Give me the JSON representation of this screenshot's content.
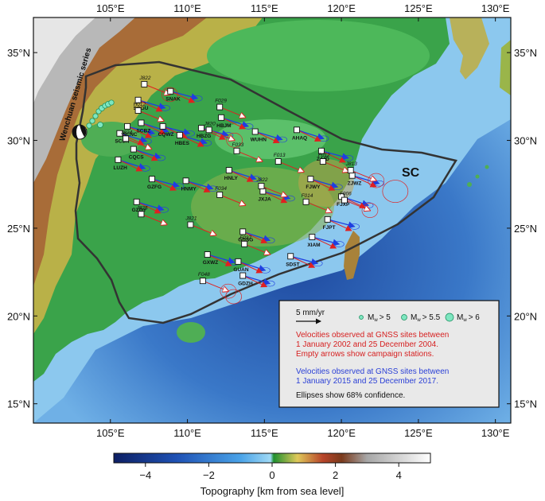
{
  "map": {
    "lon_ticks": [
      "105°E",
      "110°E",
      "115°E",
      "120°E",
      "125°E",
      "130°E"
    ],
    "lat_ticks": [
      "35°N",
      "30°N",
      "25°N",
      "20°N",
      "15°N"
    ],
    "region_label": "SC",
    "seismic_label": "Wenchuan seismic series"
  },
  "sites_permanent": [
    {
      "name": "SNAK",
      "lon": 108.9,
      "lat": 32.8
    },
    {
      "name": "SCGU",
      "lon": 106.8,
      "lat": 32.3
    },
    {
      "name": "SCBZ",
      "lon": 107.0,
      "lat": 31.0
    },
    {
      "name": "SCNC",
      "lon": 106.1,
      "lat": 30.8
    },
    {
      "name": "SCSN",
      "lon": 105.6,
      "lat": 30.4
    },
    {
      "name": "CQCS",
      "lon": 106.5,
      "lat": 29.5
    },
    {
      "name": "CQWZ",
      "lon": 108.4,
      "lat": 30.8
    },
    {
      "name": "HBES",
      "lon": 109.5,
      "lat": 30.3
    },
    {
      "name": "HBJM",
      "lon": 112.2,
      "lat": 31.3
    },
    {
      "name": "HBZG",
      "lon": 110.9,
      "lat": 30.7
    },
    {
      "name": "WUHN",
      "lon": 114.4,
      "lat": 30.5
    },
    {
      "name": "AHAQ",
      "lon": 117.1,
      "lat": 30.6
    },
    {
      "name": "ZJJD",
      "lon": 118.7,
      "lat": 29.4
    },
    {
      "name": "ZJWZ",
      "lon": 120.7,
      "lat": 28.0
    },
    {
      "name": "LUZH",
      "lon": 105.5,
      "lat": 28.9
    },
    {
      "name": "GZFG",
      "lon": 107.7,
      "lat": 27.8
    },
    {
      "name": "HNMY",
      "lon": 109.9,
      "lat": 27.7
    },
    {
      "name": "HNLY",
      "lon": 112.7,
      "lat": 28.3
    },
    {
      "name": "JXJA",
      "lon": 114.9,
      "lat": 27.1
    },
    {
      "name": "FJWY",
      "lon": 118.0,
      "lat": 27.8
    },
    {
      "name": "FJXP",
      "lon": 120.0,
      "lat": 26.8
    },
    {
      "name": "FJPT",
      "lon": 119.1,
      "lat": 25.5
    },
    {
      "name": "GZGY",
      "lon": 106.7,
      "lat": 26.5
    },
    {
      "name": "GDSG",
      "lon": 113.6,
      "lat": 24.8
    },
    {
      "name": "XIAM",
      "lon": 118.1,
      "lat": 24.5
    },
    {
      "name": "GXWZ",
      "lon": 111.3,
      "lat": 23.5
    },
    {
      "name": "GUAN",
      "lon": 113.3,
      "lat": 23.1
    },
    {
      "name": "SDST",
      "lon": 116.7,
      "lat": 23.4
    },
    {
      "name": "GDZH",
      "lon": 113.6,
      "lat": 22.3
    }
  ],
  "sites_campaign": [
    {
      "name": "J822",
      "lon": 107.2,
      "lat": 33.2
    },
    {
      "name": "H012",
      "lon": 106.8,
      "lat": 31.7
    },
    {
      "name": "J824",
      "lon": 106.0,
      "lat": 30.1
    },
    {
      "name": "F029",
      "lon": 112.1,
      "lat": 31.9
    },
    {
      "name": "J820",
      "lon": 111.4,
      "lat": 30.6
    },
    {
      "name": "F033",
      "lon": 113.2,
      "lat": 29.4
    },
    {
      "name": "F013",
      "lon": 115.9,
      "lat": 28.8
    },
    {
      "name": "F012",
      "lon": 118.8,
      "lat": 28.8
    },
    {
      "name": "J813",
      "lon": 120.6,
      "lat": 28.3
    },
    {
      "name": "J822",
      "lon": 114.8,
      "lat": 27.4
    },
    {
      "name": "F034",
      "lon": 112.1,
      "lat": 26.9
    },
    {
      "name": "F014",
      "lon": 117.7,
      "lat": 26.5
    },
    {
      "name": "F006",
      "lon": 120.2,
      "lat": 26.6
    },
    {
      "name": "J825",
      "lon": 107.0,
      "lat": 25.8
    },
    {
      "name": "J821",
      "lon": 110.2,
      "lat": 25.2
    },
    {
      "name": "F037",
      "lon": 113.7,
      "lat": 24.1
    },
    {
      "name": "F048",
      "lon": 111.0,
      "lat": 22.0
    }
  ],
  "legend": {
    "scale_label": "5 mm/yr",
    "mw_labels": [
      "M",
      "M",
      "M"
    ],
    "mw_subs": [
      "w",
      "w",
      "w"
    ],
    "mw_values": [
      "> 5",
      "> 5.5",
      "> 6"
    ],
    "red_lines": [
      "Velocities observed at GNSS sites between",
      "1 January 2002 and 25 December 2004.",
      "Empty arrows show campaign stations."
    ],
    "blue_lines": [
      "Velocities observed at GNSS sites between",
      "1 January 2015 and 25 December 2017."
    ],
    "black_line": "Ellipses show 68% confidence."
  },
  "colorbar": {
    "ticks": [
      "−4",
      "−2",
      "0",
      "2",
      "4"
    ],
    "title": "Topography [km from sea level]",
    "range_km": [
      -5,
      5
    ]
  },
  "colors": {
    "red_vectors": "#e02020",
    "blue_vectors": "#1f3fe0",
    "ocean_deep": "#1a3d8f",
    "ocean_shallow": "#7fb8e6",
    "lowland": "#2e9f3e",
    "highland": "#c7a24a",
    "mountain": "#a9a9a9"
  }
}
